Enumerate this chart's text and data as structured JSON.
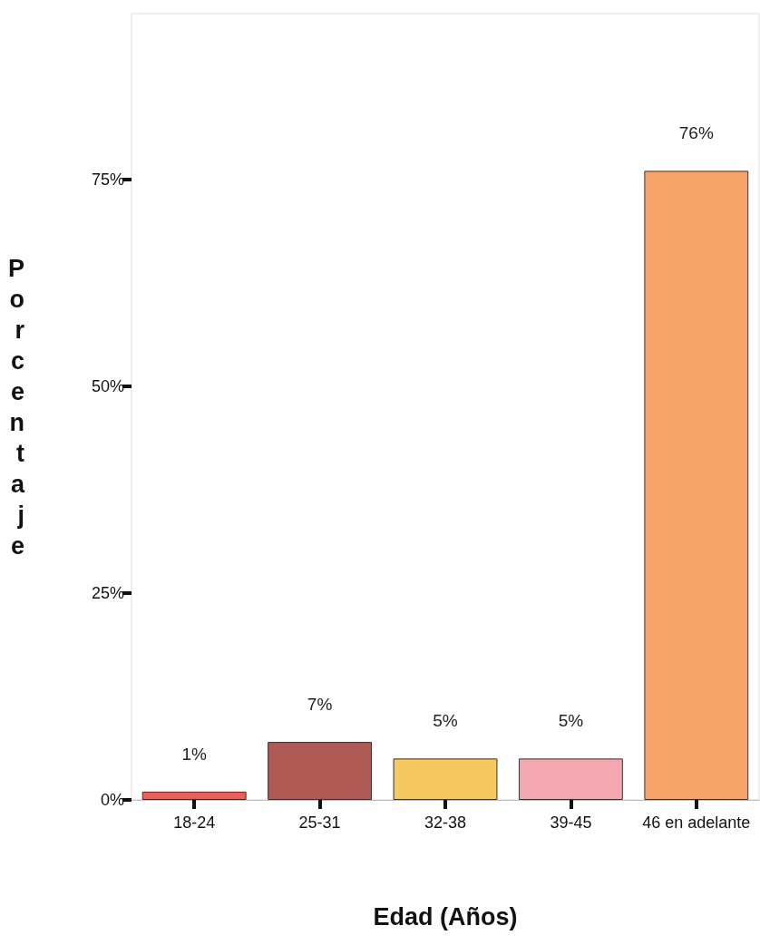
{
  "chart_data": {
    "type": "bar",
    "xlabel": "Edad (Años)",
    "ylabel": "Porcentaje",
    "categories": [
      "18-24",
      "25-31",
      "32-38",
      "39-45",
      "46 en adelante"
    ],
    "values": [
      1,
      7,
      5,
      5,
      76
    ],
    "colors": [
      "#e8605a",
      "#b05a56",
      "#f5c860",
      "#f4a7b0",
      "#f7a46a"
    ],
    "ylim": [
      0,
      95
    ],
    "yticks": [
      {
        "value": 0,
        "label": "0%"
      },
      {
        "value": 25,
        "label": "25%"
      },
      {
        "value": 50,
        "label": "50%"
      },
      {
        "value": 75,
        "label": "75%"
      }
    ],
    "value_labels": [
      "1%",
      "7%",
      "5%",
      "5%",
      "76%"
    ]
  }
}
